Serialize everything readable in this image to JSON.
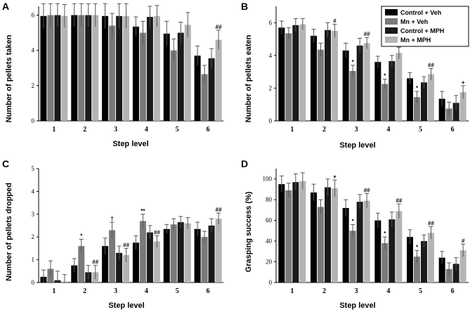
{
  "colors": {
    "series": [
      "#000000",
      "#7a7a7a",
      "#1a1a1a",
      "#b4b4b4"
    ],
    "error_bar": "#555555",
    "axis": "#000000"
  },
  "legend": {
    "entries": [
      "Control + Veh",
      "Mn + Veh",
      "Control + MPH",
      "Mn + MPH"
    ]
  },
  "chart_data": [
    {
      "panel": "A",
      "type": "bar",
      "ylabel": "Number of pellets taken",
      "xlabel": "Step level",
      "ylim": [
        0,
        6.5
      ],
      "yticks": [
        0,
        2,
        4,
        6
      ],
      "categories": [
        "1",
        "2",
        "3",
        "4",
        "5",
        "6"
      ],
      "series": [
        {
          "name": "Control + Veh",
          "values": [
            5.95,
            6.0,
            5.95,
            5.35,
            4.95,
            3.7
          ],
          "errors": [
            0.7,
            0.65,
            0.7,
            0.55,
            0.7,
            0.55
          ]
        },
        {
          "name": "Mn + Veh",
          "values": [
            6.0,
            6.0,
            5.4,
            5.0,
            4.0,
            2.65
          ],
          "errors": [
            0.65,
            0.65,
            0.7,
            0.65,
            0.65,
            0.5
          ]
        },
        {
          "name": "Control + MPH",
          "values": [
            6.0,
            6.0,
            5.95,
            5.9,
            5.0,
            3.55
          ],
          "errors": [
            0.65,
            0.65,
            0.7,
            0.6,
            0.6,
            0.55
          ]
        },
        {
          "name": "Mn + MPH",
          "values": [
            5.95,
            6.0,
            5.95,
            5.95,
            5.45,
            4.6
          ],
          "errors": [
            0.65,
            0.65,
            0.7,
            0.6,
            0.7,
            0.55
          ]
        }
      ],
      "annotations": [
        {
          "category": "6",
          "series": 3,
          "text": "##"
        }
      ]
    },
    {
      "panel": "B",
      "type": "bar",
      "ylabel": "Number of pellets eaten",
      "xlabel": "Step level",
      "ylim": [
        0,
        7
      ],
      "yticks": [
        0,
        2,
        4,
        6
      ],
      "categories": [
        "1",
        "2",
        "3",
        "4",
        "5",
        "6"
      ],
      "series": [
        {
          "name": "Control + Veh",
          "values": [
            5.7,
            5.2,
            4.3,
            3.6,
            2.6,
            1.35
          ],
          "errors": [
            0.4,
            0.4,
            0.45,
            0.35,
            0.35,
            0.45
          ]
        },
        {
          "name": "Mn + Veh",
          "values": [
            5.35,
            4.35,
            3.05,
            2.25,
            1.45,
            0.75
          ],
          "errors": [
            0.35,
            0.4,
            0.35,
            0.3,
            0.35,
            0.4
          ]
        },
        {
          "name": "Control + MPH",
          "values": [
            5.85,
            5.55,
            4.6,
            3.65,
            2.35,
            1.1
          ],
          "errors": [
            0.4,
            0.45,
            0.45,
            0.35,
            0.35,
            0.45
          ]
        },
        {
          "name": "Mn + MPH",
          "values": [
            5.9,
            5.5,
            4.75,
            4.15,
            2.85,
            1.75
          ],
          "errors": [
            0.35,
            0.4,
            0.35,
            0.35,
            0.35,
            0.4
          ]
        }
      ],
      "annotations": [
        {
          "category": "2",
          "series": 3,
          "text": "#"
        },
        {
          "category": "3",
          "series": 1,
          "text": "*"
        },
        {
          "category": "3",
          "series": 3,
          "text": "##"
        },
        {
          "category": "4",
          "series": 1,
          "text": "*"
        },
        {
          "category": "4",
          "series": 3,
          "text": "##"
        },
        {
          "category": "5",
          "series": 1,
          "text": "*"
        },
        {
          "category": "5",
          "series": 3,
          "text": "##"
        },
        {
          "category": "6",
          "series": 3,
          "text": "+"
        }
      ]
    },
    {
      "panel": "C",
      "type": "bar",
      "ylabel": "Number of pellets dropped",
      "xlabel": "Step level",
      "ylim": [
        0,
        5
      ],
      "yticks": [
        0,
        1,
        2,
        3,
        4,
        5
      ],
      "categories": [
        "1",
        "2",
        "3",
        "4",
        "5",
        "6"
      ],
      "series": [
        {
          "name": "Control + Veh",
          "values": [
            0.25,
            0.75,
            1.6,
            1.75,
            2.35,
            2.35
          ],
          "errors": [
            0.3,
            0.3,
            0.35,
            0.3,
            0.2,
            0.3
          ]
        },
        {
          "name": "Mn + Veh",
          "values": [
            0.6,
            1.6,
            2.3,
            2.7,
            2.55,
            2.0
          ],
          "errors": [
            0.35,
            0.3,
            0.35,
            0.3,
            0.25,
            0.25
          ]
        },
        {
          "name": "Control + MPH",
          "values": [
            0.1,
            0.45,
            1.3,
            2.2,
            2.65,
            2.5
          ],
          "errors": [
            0.4,
            0.3,
            0.3,
            0.3,
            0.25,
            0.3
          ]
        },
        {
          "name": "Mn + MPH",
          "values": [
            0.05,
            0.45,
            1.2,
            1.8,
            2.6,
            2.8
          ],
          "errors": [
            0.3,
            0.3,
            0.3,
            0.25,
            0.25,
            0.25
          ]
        }
      ],
      "annotations": [
        {
          "category": "2",
          "series": 1,
          "text": "*"
        },
        {
          "category": "2",
          "series": 3,
          "text": "##"
        },
        {
          "category": "3",
          "series": 1,
          "text": "†"
        },
        {
          "category": "3",
          "series": 3,
          "text": "##"
        },
        {
          "category": "4",
          "series": 1,
          "text": "**"
        },
        {
          "category": "4",
          "series": 3,
          "text": "##"
        },
        {
          "category": "6",
          "series": 3,
          "text": "##"
        }
      ]
    },
    {
      "panel": "D",
      "type": "bar",
      "ylabel": "Grasping success (%)",
      "xlabel": "Step level",
      "ylim": [
        0,
        110
      ],
      "yticks": [
        0,
        20,
        40,
        60,
        80,
        100
      ],
      "categories": [
        "1",
        "2",
        "3",
        "4",
        "5",
        "6"
      ],
      "series": [
        {
          "name": "Control + Veh",
          "values": [
            95,
            87,
            72,
            60,
            44,
            24
          ],
          "errors": [
            8,
            8,
            8,
            7,
            7,
            6
          ]
        },
        {
          "name": "Mn + Veh",
          "values": [
            89,
            73,
            50,
            38,
            25,
            13
          ],
          "errors": [
            7,
            7,
            6,
            6,
            6,
            6
          ]
        },
        {
          "name": "Control + MPH",
          "values": [
            97,
            92,
            78,
            61,
            40,
            18
          ],
          "errors": [
            8,
            8,
            7,
            7,
            6,
            6
          ]
        },
        {
          "name": "Mn + MPH",
          "values": [
            98,
            91,
            79,
            69,
            48,
            31
          ],
          "errors": [
            8,
            8,
            7,
            7,
            6,
            6
          ]
        }
      ],
      "annotations": [
        {
          "category": "2",
          "series": 3,
          "text": "+"
        },
        {
          "category": "3",
          "series": 1,
          "text": "*"
        },
        {
          "category": "3",
          "series": 3,
          "text": "##"
        },
        {
          "category": "4",
          "series": 1,
          "text": "*"
        },
        {
          "category": "4",
          "series": 3,
          "text": "##"
        },
        {
          "category": "5",
          "series": 1,
          "text": "*"
        },
        {
          "category": "5",
          "series": 3,
          "text": "##"
        },
        {
          "category": "6",
          "series": 3,
          "text": "#"
        }
      ]
    }
  ]
}
